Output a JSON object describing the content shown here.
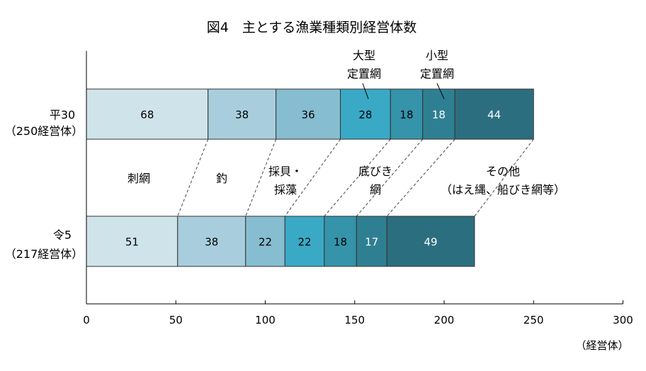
{
  "chart_data": {
    "type": "bar",
    "orientation": "horizontal-stacked",
    "title": "図4　主とする漁業種類別経営体数",
    "xlim": [
      0,
      300
    ],
    "x_ticks": [
      "0",
      "50",
      "100",
      "150",
      "200",
      "250",
      "300"
    ],
    "unit_label": "（経営体）",
    "rows": [
      {
        "label_line1": "平30",
        "label_line2": "（250経営体）",
        "total": 250,
        "values": [
          68,
          38,
          36,
          28,
          18,
          18,
          44
        ]
      },
      {
        "label_line1": "令5",
        "label_line2": "（217経営体）",
        "total": 217,
        "values": [
          51,
          38,
          22,
          22,
          18,
          17,
          49
        ]
      }
    ],
    "series": [
      {
        "name": "刺網",
        "label_lines": [
          "刺網"
        ],
        "color": "#cfe3ea"
      },
      {
        "name": "釣",
        "label_lines": [
          "釣"
        ],
        "color": "#a8cedd"
      },
      {
        "name": "採貝・採藻",
        "label_lines": [
          "採貝・",
          "採藻"
        ],
        "color": "#86bdd0"
      },
      {
        "name": "大型定置網",
        "label_lines": [
          "大型",
          "定置網"
        ],
        "color": "#3aa9c6"
      },
      {
        "name": "底びき網",
        "label_lines": [
          "底びき",
          "網"
        ],
        "color": "#3593aa"
      },
      {
        "name": "小型定置網",
        "label_lines": [
          "小型",
          "定置網"
        ],
        "color": "#2f7f93"
      },
      {
        "name": "その他（はえ縄、船びき網等）",
        "label_lines": [
          "その他",
          "（はえ縄、船びき網等）"
        ],
        "color": "#2b6e7f"
      }
    ]
  }
}
